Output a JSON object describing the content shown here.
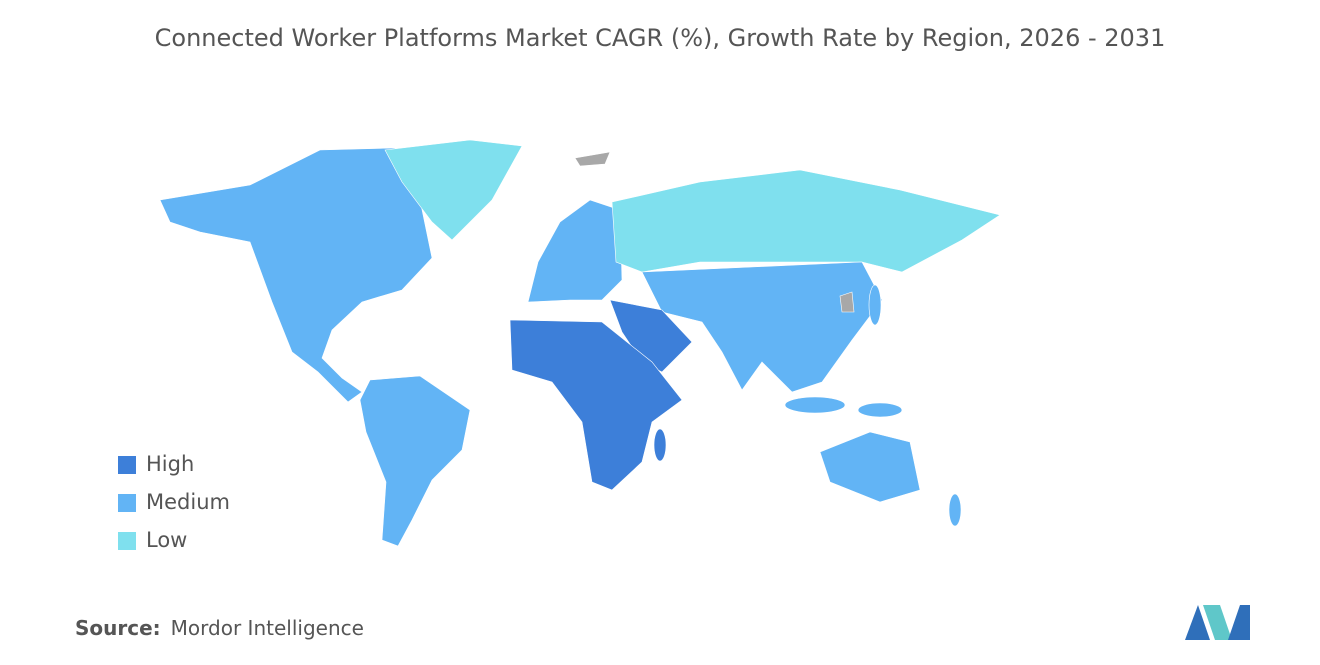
{
  "title": "Connected Worker Platforms Market CAGR (%), Growth Rate by Region, 2026 - 2031",
  "legend": [
    {
      "label": "High",
      "color": "#3d7fd9"
    },
    {
      "label": "Medium",
      "color": "#62b4f5"
    },
    {
      "label": "Low",
      "color": "#7fe0ee"
    }
  ],
  "source": {
    "label": "Source:",
    "value": "Mordor Intelligence"
  }
}
